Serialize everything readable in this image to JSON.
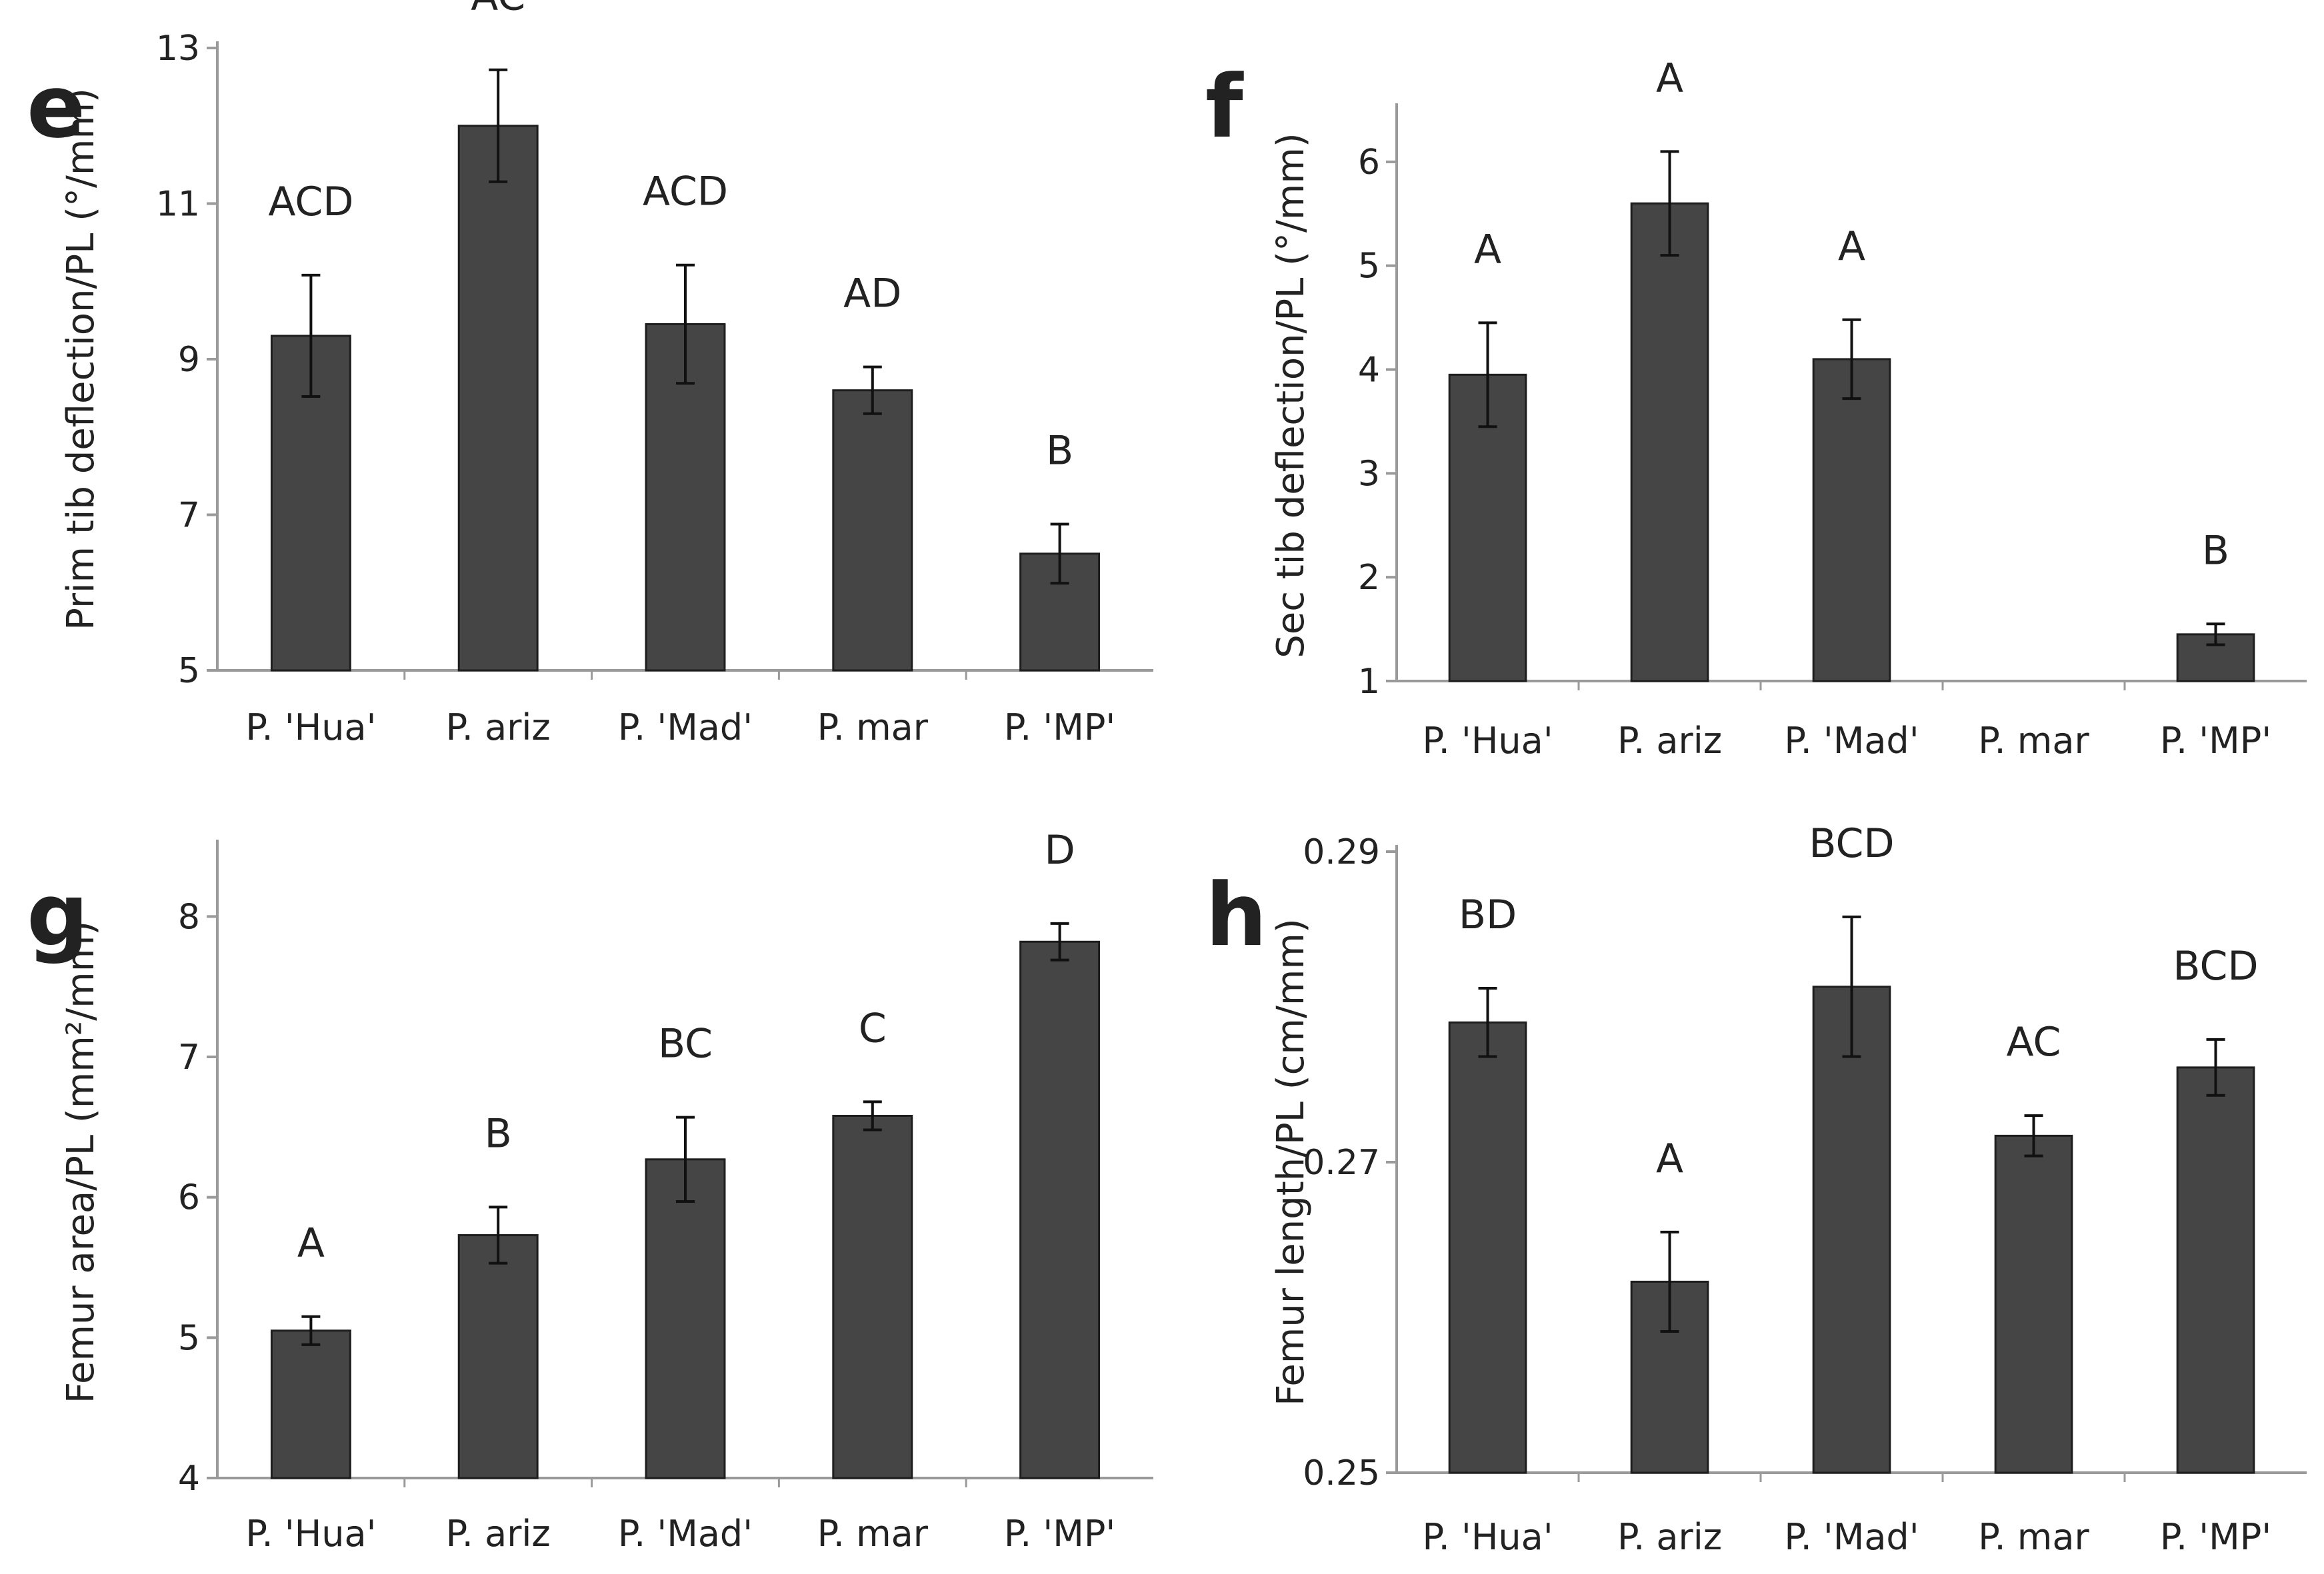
{
  "chart_data": [
    {
      "panel": "e",
      "type": "bar",
      "categories": [
        "P. 'Hua'",
        "P. ariz",
        "P. 'Mad'",
        "P. mar",
        "P. 'MP'"
      ],
      "values": [
        9.3,
        12.0,
        9.45,
        8.6,
        6.5
      ],
      "errors": [
        0.78,
        0.72,
        0.76,
        0.3,
        0.38
      ],
      "letters": [
        "ACD",
        "AC",
        "ACD",
        "AD",
        "B"
      ],
      "ylabel": "Prim tib deflection/PL (°/mm)",
      "ylim": [
        5,
        13
      ],
      "yticks": [
        "5",
        "7",
        "9",
        "11",
        "13"
      ],
      "grid": false
    },
    {
      "panel": "f",
      "type": "bar",
      "categories": [
        "P. 'Hua'",
        "P. ariz",
        "P. 'Mad'",
        "P. mar",
        "P. 'MP'"
      ],
      "values": [
        3.95,
        5.6,
        4.1,
        null,
        1.45
      ],
      "errors": [
        0.5,
        0.5,
        0.38,
        null,
        0.1
      ],
      "letters": [
        "A",
        "A",
        "A",
        "",
        "B"
      ],
      "ylabel": "Sec tib deflection/PL (°/mm)",
      "ylim": [
        1,
        6.5
      ],
      "yticks": [
        "1",
        "2",
        "3",
        "4",
        "5",
        "6"
      ],
      "grid": false
    },
    {
      "panel": "g",
      "type": "bar",
      "categories": [
        "P. 'Hua'",
        "P. ariz",
        "P. 'Mad'",
        "P. mar",
        "P. 'MP'"
      ],
      "values": [
        5.05,
        5.73,
        6.27,
        6.58,
        7.82
      ],
      "errors": [
        0.1,
        0.2,
        0.3,
        0.1,
        0.13
      ],
      "letters": [
        "A",
        "B",
        "BC",
        "C",
        "D"
      ],
      "ylabel": "Femur area/PL (mm²/mm)",
      "ylim": [
        4,
        8.5
      ],
      "yticks": [
        "4",
        "5",
        "6",
        "7",
        "8"
      ],
      "grid": false
    },
    {
      "panel": "h",
      "type": "bar",
      "categories": [
        "P. 'Hua'",
        "P. ariz",
        "P. 'Mad'",
        "P. mar",
        "P. 'MP'"
      ],
      "values": [
        0.279,
        0.2623,
        0.2813,
        0.2717,
        0.2761
      ],
      "errors": [
        0.0022,
        0.0032,
        0.0045,
        0.0013,
        0.0018
      ],
      "letters": [
        "BD",
        "A",
        "BCD",
        "AC",
        "BCD"
      ],
      "ylabel": "Femur length/PL (cm/mm)",
      "ylim": [
        0.25,
        0.29
      ],
      "yticks": [
        "0.25",
        "0.27",
        "0.29"
      ],
      "grid": false
    }
  ],
  "style": {
    "bar_color": "#454545",
    "axis_color": "#9a9a9a",
    "text_color": "#222222"
  }
}
